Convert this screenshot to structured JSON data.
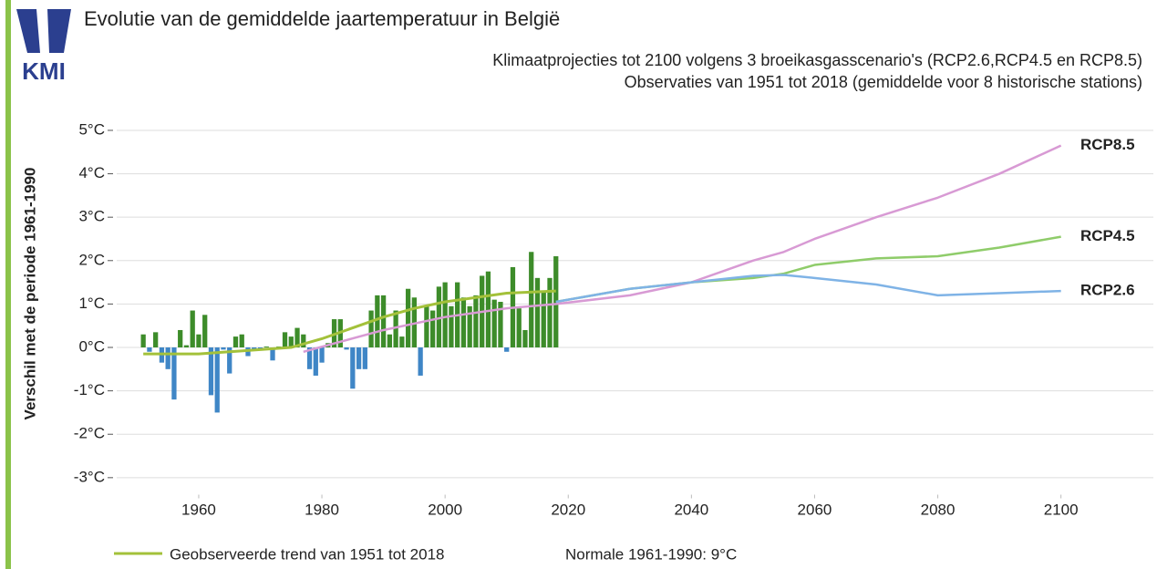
{
  "chart_data": {
    "type": "bar",
    "title": "Evolutie van de gemiddelde jaartemperatuur in België",
    "subtitle": [
      "Klimaatprojecties tot 2100 volgens 3 broeikasgasscenario's (RCP2.6,RCP4.5 en RCP8.5)",
      "Observaties van 1951 tot 2018 (gemiddelde voor 8 historische stations)"
    ],
    "logo_text": "KMI",
    "y_label": "Verschil met de periode 1961-1990",
    "note": "Normale 1961-1990: 9°C",
    "x": [
      1951,
      1952,
      1953,
      1954,
      1955,
      1956,
      1957,
      1958,
      1959,
      1960,
      1961,
      1962,
      1963,
      1964,
      1965,
      1966,
      1967,
      1968,
      1969,
      1970,
      1971,
      1972,
      1973,
      1974,
      1975,
      1976,
      1977,
      1978,
      1979,
      1980,
      1981,
      1982,
      1983,
      1984,
      1985,
      1986,
      1987,
      1988,
      1989,
      1990,
      1991,
      1992,
      1993,
      1994,
      1995,
      1996,
      1997,
      1998,
      1999,
      2000,
      2001,
      2002,
      2003,
      2004,
      2005,
      2006,
      2007,
      2008,
      2009,
      2010,
      2011,
      2012,
      2013,
      2014,
      2015,
      2016,
      2017,
      2018
    ],
    "values": [
      0.3,
      -0.1,
      0.35,
      -0.35,
      -0.5,
      -1.2,
      0.4,
      0.05,
      0.85,
      0.3,
      0.75,
      -1.1,
      -1.5,
      -0.05,
      -0.6,
      0.25,
      0.3,
      -0.2,
      -0.05,
      -0.05,
      0.02,
      -0.3,
      0.02,
      0.35,
      0.25,
      0.45,
      0.3,
      -0.5,
      -0.65,
      -0.35,
      0.1,
      0.65,
      0.65,
      -0.05,
      -0.95,
      -0.5,
      -0.5,
      0.85,
      1.2,
      1.2,
      0.3,
      0.85,
      0.25,
      1.35,
      1.15,
      -0.65,
      0.95,
      0.85,
      1.4,
      1.5,
      0.95,
      1.5,
      1.15,
      0.95,
      1.2,
      1.65,
      1.75,
      1.1,
      1.05,
      -0.1,
      1.85,
      0.9,
      0.4,
      2.2,
      1.6,
      1.3,
      1.6,
      2.1
    ],
    "positive_color": "#3d8c2a",
    "negative_color": "#3f86c6",
    "trend": {
      "name": "Geobserveerde trend van 1951 tot 2018",
      "color": "#a3c13a",
      "x": [
        1951,
        1960,
        1970,
        1975,
        1980,
        1985,
        1990,
        1995,
        2000,
        2005,
        2010,
        2018
      ],
      "values": [
        -0.15,
        -0.15,
        -0.05,
        0.0,
        0.2,
        0.45,
        0.7,
        0.9,
        1.05,
        1.15,
        1.25,
        1.3
      ]
    },
    "series": [
      {
        "name": "RCP8.5",
        "color": "#d89ad4",
        "x": [
          1977,
          1990,
          2000,
          2010,
          2018,
          2030,
          2040,
          2050,
          2055,
          2060,
          2070,
          2080,
          2090,
          2100
        ],
        "values": [
          -0.1,
          0.4,
          0.7,
          0.9,
          1.0,
          1.2,
          1.5,
          2.0,
          2.2,
          2.5,
          3.0,
          3.45,
          4.0,
          4.65
        ]
      },
      {
        "name": "RCP4.5",
        "color": "#8fcc6a",
        "x": [
          2018,
          2030,
          2040,
          2050,
          2055,
          2060,
          2070,
          2080,
          2090,
          2100
        ],
        "values": [
          1.05,
          1.35,
          1.5,
          1.6,
          1.7,
          1.9,
          2.05,
          2.1,
          2.3,
          2.55
        ]
      },
      {
        "name": "RCP2.6",
        "color": "#7fb3e6",
        "x": [
          2018,
          2030,
          2040,
          2050,
          2055,
          2060,
          2070,
          2080,
          2090,
          2100
        ],
        "values": [
          1.05,
          1.35,
          1.5,
          1.65,
          1.67,
          1.6,
          1.45,
          1.2,
          1.25,
          1.3
        ]
      }
    ],
    "xlim": [
      1945.5,
      2115
    ],
    "xticks": [
      1960,
      1980,
      2000,
      2020,
      2040,
      2060,
      2080,
      2100
    ],
    "ylim": [
      -3.35,
      5.35
    ],
    "yticks": [
      {
        "value": -3,
        "label": "-3°C"
      },
      {
        "value": -2,
        "label": "-2°C"
      },
      {
        "value": -1,
        "label": "-1°C"
      },
      {
        "value": 0,
        "label": "0°C"
      },
      {
        "value": 1,
        "label": "1°C"
      },
      {
        "value": 2,
        "label": "2°C"
      },
      {
        "value": 3,
        "label": "3°C"
      },
      {
        "value": 4,
        "label": "4°C"
      },
      {
        "value": 5,
        "label": "5°C"
      }
    ],
    "grid": true
  }
}
